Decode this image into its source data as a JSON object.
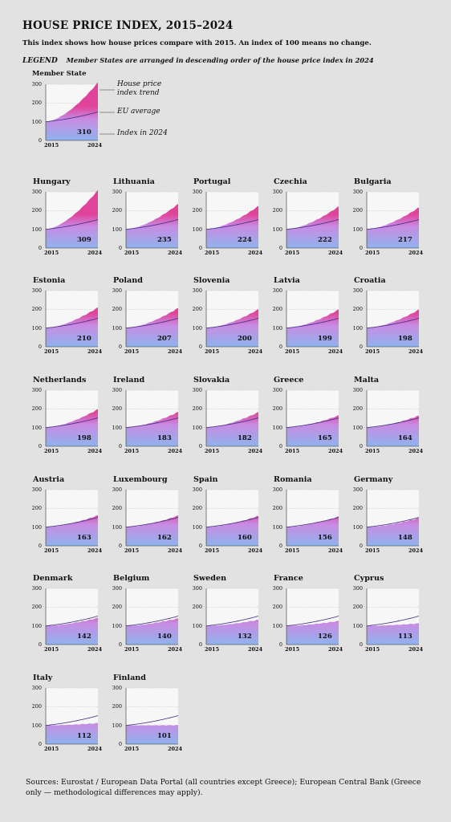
{
  "title": "HOUSE PRICE INDEX, 2015–2024",
  "subtitle": "This index shows how house prices compare with 2015. An index of 100 means no change.",
  "legend": {
    "label": "LEGEND",
    "text": "Member States are arranged in descending order of the house price index in 2024",
    "panel_title": "Member State",
    "ann_trend": "House price\nindex trend",
    "ann_eu": "EU average",
    "ann_index": "Index in 2024",
    "value_label": "310"
  },
  "sources": "Sources: Eurostat / European Data Portal (all countries except Greece); European Central Bank (Greece only — methodological differences may apply).",
  "colors": {
    "top": "#e0449a",
    "mid": "#c88be4",
    "bottom": "#8fb3ec",
    "eu_line": "#3c2a7e",
    "panel_bg": "#f7f7f7"
  },
  "chart_data": {
    "type": "area",
    "x_ticks": [
      "2015",
      "2024"
    ],
    "y_ticks": [
      "0",
      "100",
      "200",
      "300"
    ],
    "ylim": [
      0,
      300
    ],
    "xlim": [
      2015,
      2024
    ],
    "legend_example": {
      "end": 310
    },
    "panels": [
      {
        "name": "Hungary",
        "value": 309,
        "end": 309
      },
      {
        "name": "Lithuania",
        "value": 235,
        "end": 235
      },
      {
        "name": "Portugal",
        "value": 224,
        "end": 224
      },
      {
        "name": "Czechia",
        "value": 222,
        "end": 222
      },
      {
        "name": "Bulgaria",
        "value": 217,
        "end": 217
      },
      {
        "name": "Estonia",
        "value": 210,
        "end": 210
      },
      {
        "name": "Poland",
        "value": 207,
        "end": 207
      },
      {
        "name": "Slovenia",
        "value": 200,
        "end": 200
      },
      {
        "name": "Latvia",
        "value": 199,
        "end": 199
      },
      {
        "name": "Croatia",
        "value": 198,
        "end": 198
      },
      {
        "name": "Netherlands",
        "value": 198,
        "end": 198
      },
      {
        "name": "Ireland",
        "value": 183,
        "end": 183
      },
      {
        "name": "Slovakia",
        "value": 182,
        "end": 182
      },
      {
        "name": "Greece",
        "value": 165,
        "end": 165
      },
      {
        "name": "Malta",
        "value": 164,
        "end": 164
      },
      {
        "name": "Austria",
        "value": 163,
        "end": 163
      },
      {
        "name": "Luxembourg",
        "value": 162,
        "end": 162
      },
      {
        "name": "Spain",
        "value": 160,
        "end": 160
      },
      {
        "name": "Romania",
        "value": 156,
        "end": 156
      },
      {
        "name": "Germany",
        "value": 148,
        "end": 148
      },
      {
        "name": "Denmark",
        "value": 142,
        "end": 142
      },
      {
        "name": "Belgium",
        "value": 140,
        "end": 140
      },
      {
        "name": "Sweden",
        "value": 132,
        "end": 132
      },
      {
        "name": "France",
        "value": 126,
        "end": 126
      },
      {
        "name": "Cyprus",
        "value": 113,
        "end": 113
      },
      {
        "name": "Italy",
        "value": 112,
        "end": 112
      },
      {
        "name": "Finland",
        "value": 101,
        "end": 101
      }
    ]
  }
}
